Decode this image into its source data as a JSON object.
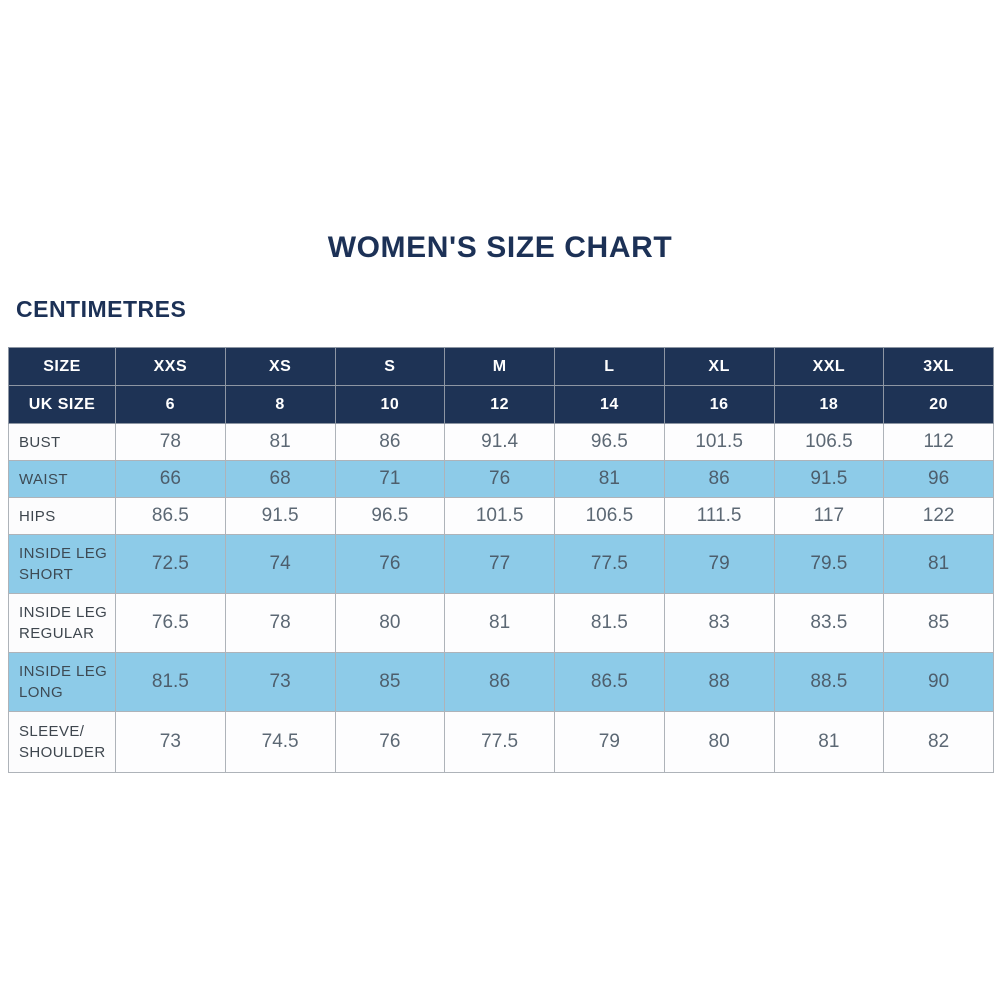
{
  "title": "WOMEN'S SIZE CHART",
  "unit_label": "CENTIMETRES",
  "colors": {
    "navy_header": "#1e3355",
    "highlight_blue": "#8dcbe8",
    "title_navy": "#1c3156",
    "grid_gray": "#aeb3b9",
    "value_text": "#5c6874",
    "label_text": "#3e464e"
  },
  "chart_data": {
    "type": "table",
    "title": "WOMEN'S SIZE CHART",
    "units": "CENTIMETRES",
    "header_rows": [
      {
        "label": "SIZE",
        "values": [
          "XXS",
          "XS",
          "S",
          "M",
          "L",
          "XL",
          "XXL",
          "3XL"
        ]
      },
      {
        "label": "UK SIZE",
        "values": [
          "6",
          "8",
          "10",
          "12",
          "14",
          "16",
          "18",
          "20"
        ]
      }
    ],
    "rows": [
      {
        "label": "BUST",
        "highlight": false,
        "values": [
          "78",
          "81",
          "86",
          "91.4",
          "96.5",
          "101.5",
          "106.5",
          "112"
        ]
      },
      {
        "label": "WAIST",
        "highlight": true,
        "values": [
          "66",
          "68",
          "71",
          "76",
          "81",
          "86",
          "91.5",
          "96"
        ]
      },
      {
        "label": "HIPS",
        "highlight": false,
        "values": [
          "86.5",
          "91.5",
          "96.5",
          "101.5",
          "106.5",
          "111.5",
          "117",
          "122"
        ]
      },
      {
        "label": "INSIDE LEG SHORT",
        "highlight": true,
        "values": [
          "72.5",
          "74",
          "76",
          "77",
          "77.5",
          "79",
          "79.5",
          "81"
        ]
      },
      {
        "label": "INSIDE LEG REGULAR",
        "highlight": false,
        "values": [
          "76.5",
          "78",
          "80",
          "81",
          "81.5",
          "83",
          "83.5",
          "85"
        ]
      },
      {
        "label": "INSIDE LEG LONG",
        "highlight": true,
        "values": [
          "81.5",
          "73",
          "85",
          "86",
          "86.5",
          "88",
          "88.5",
          "90"
        ]
      },
      {
        "label": "SLEEVE/ SHOULDER",
        "highlight": false,
        "values": [
          "73",
          "74.5",
          "76",
          "77.5",
          "79",
          "80",
          "81",
          "82"
        ]
      }
    ]
  }
}
